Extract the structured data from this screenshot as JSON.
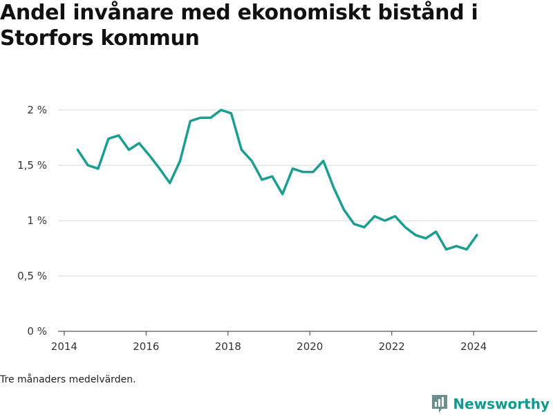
{
  "chart_data": {
    "type": "line",
    "title": "Andel invånare med ekonomiskt bistånd i Storfors kommun",
    "note": "Tre månaders medelvärden.",
    "y_tick_labels": [
      "0 %",
      "0,5 %",
      "1 %",
      "1,5 %",
      "2 %"
    ],
    "y_ticks": [
      0,
      0.5,
      1,
      1.5,
      2
    ],
    "x_tick_labels": [
      "2014",
      "2016",
      "2018",
      "2020",
      "2022",
      "2024"
    ],
    "x_ticks": [
      2014,
      2016,
      2018,
      2020,
      2022,
      2024
    ],
    "xlim": [
      2013.85,
      2025.55
    ],
    "ylim": [
      0,
      2
    ],
    "grid": true,
    "line_color": "#1a9e92",
    "series": [
      {
        "x": [
          2014.33,
          2014.58,
          2014.83,
          2015.08,
          2015.33,
          2015.58,
          2015.83,
          2016.08,
          2016.33,
          2016.58,
          2016.83,
          2017.08,
          2017.33,
          2017.58,
          2017.83,
          2018.08,
          2018.33,
          2018.58,
          2018.83,
          2019.08,
          2019.33,
          2019.58,
          2019.83,
          2020.08,
          2020.33,
          2020.58,
          2020.83,
          2021.08,
          2021.33,
          2021.58,
          2021.83,
          2022.08,
          2022.33,
          2022.58,
          2022.83,
          2023.08,
          2023.33,
          2023.58,
          2023.83,
          2024.08
        ],
        "values": [
          1.64,
          1.5,
          1.47,
          1.74,
          1.77,
          1.64,
          1.7,
          1.59,
          1.47,
          1.34,
          1.54,
          1.9,
          1.93,
          1.93,
          2.0,
          1.97,
          1.64,
          1.54,
          1.37,
          1.4,
          1.24,
          1.47,
          1.44,
          1.44,
          1.54,
          1.3,
          1.1,
          0.97,
          0.94,
          1.04,
          1.0,
          1.04,
          0.94,
          0.87,
          0.84,
          0.9,
          0.74,
          0.77,
          0.74,
          0.87
        ]
      }
    ]
  },
  "brand": {
    "name": "Newsworthy",
    "color": "#129a8e"
  }
}
